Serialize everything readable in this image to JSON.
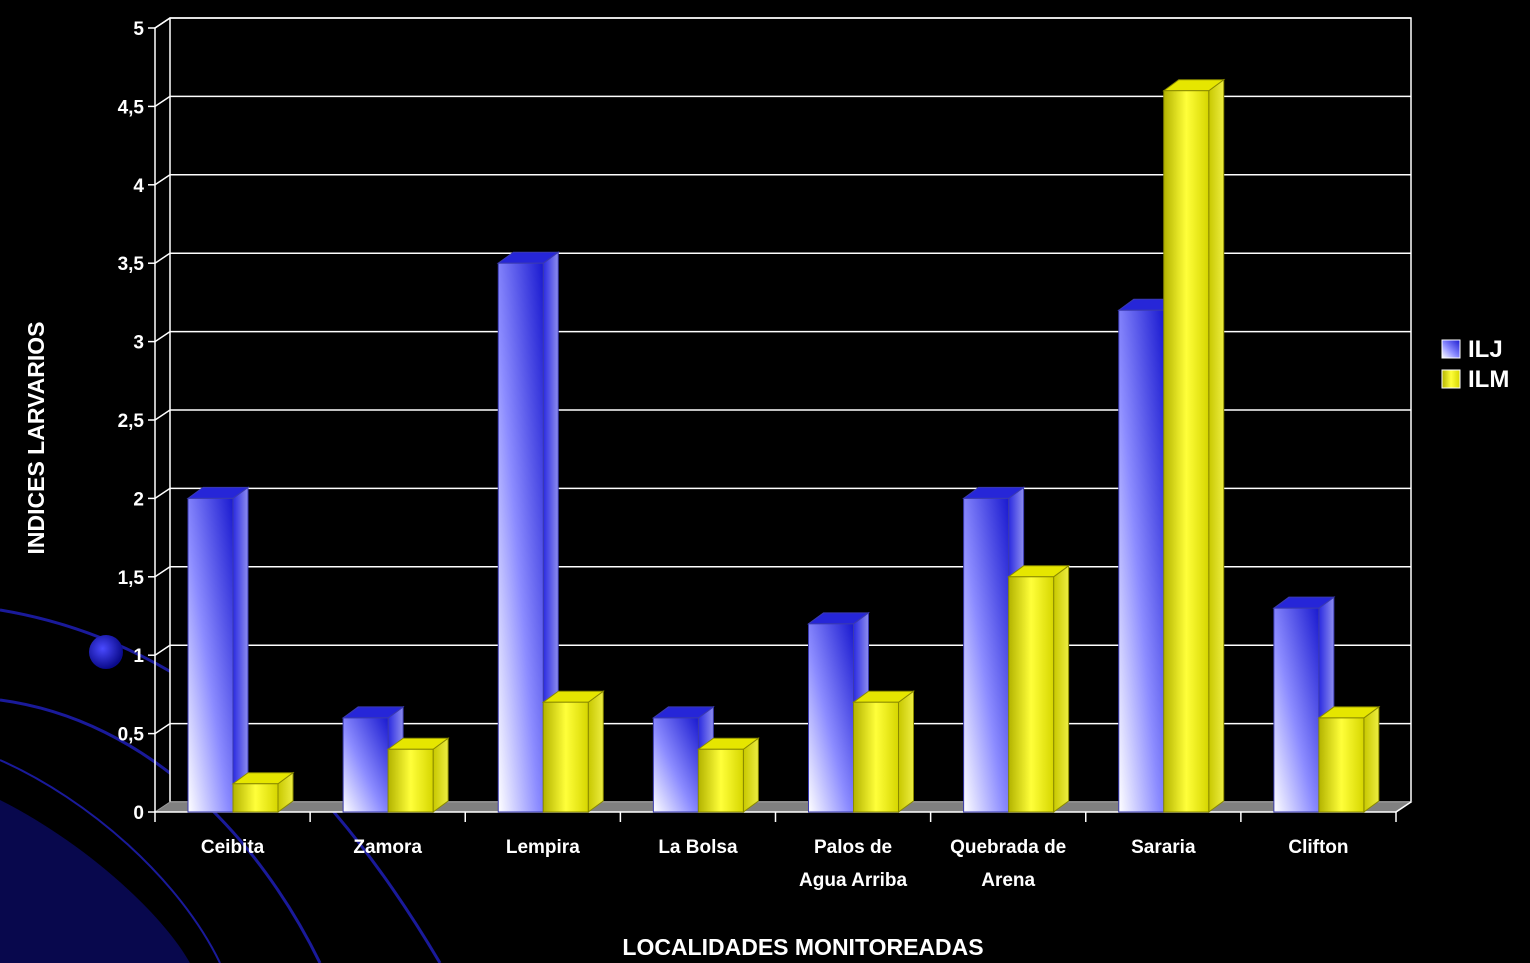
{
  "chart_data": {
    "type": "bar",
    "title": "",
    "xlabel": "LOCALIDADES MONITOREADAS",
    "ylabel": "INDICES LARVARIOS",
    "ylim": [
      0,
      5
    ],
    "yticks": [
      "0",
      "0,5",
      "1",
      "1,5",
      "2",
      "2,5",
      "3",
      "3,5",
      "4",
      "4,5",
      "5"
    ],
    "categories": [
      "Ceibita",
      "Zamora",
      "Lempira",
      "La Bolsa",
      "Palos de Agua Arriba",
      "Quebrada de Arena",
      "Sararia",
      "Clifton"
    ],
    "category_lines": [
      [
        "Ceibita"
      ],
      [
        "Zamora"
      ],
      [
        "Lempira"
      ],
      [
        "La Bolsa"
      ],
      [
        "Palos de",
        "Agua Arriba"
      ],
      [
        "Quebrada de",
        "Arena"
      ],
      [
        "Sararia"
      ],
      [
        "Clifton"
      ]
    ],
    "series": [
      {
        "name": "ILJ",
        "values": [
          2.0,
          0.6,
          3.5,
          0.6,
          1.2,
          2.0,
          3.2,
          1.3
        ]
      },
      {
        "name": "ILM",
        "values": [
          0.18,
          0.4,
          0.7,
          0.4,
          0.7,
          1.5,
          4.6,
          0.6
        ]
      }
    ],
    "grid": true,
    "legend": "right",
    "colors": {
      "ILJ": "#1f1fd6",
      "ILJ_light": "#e6e6ff",
      "ILM": "#d6d600",
      "ILM_light": "#ffff66",
      "background": "#000000",
      "gridline": "#ffffff",
      "floor": "#808080"
    }
  }
}
